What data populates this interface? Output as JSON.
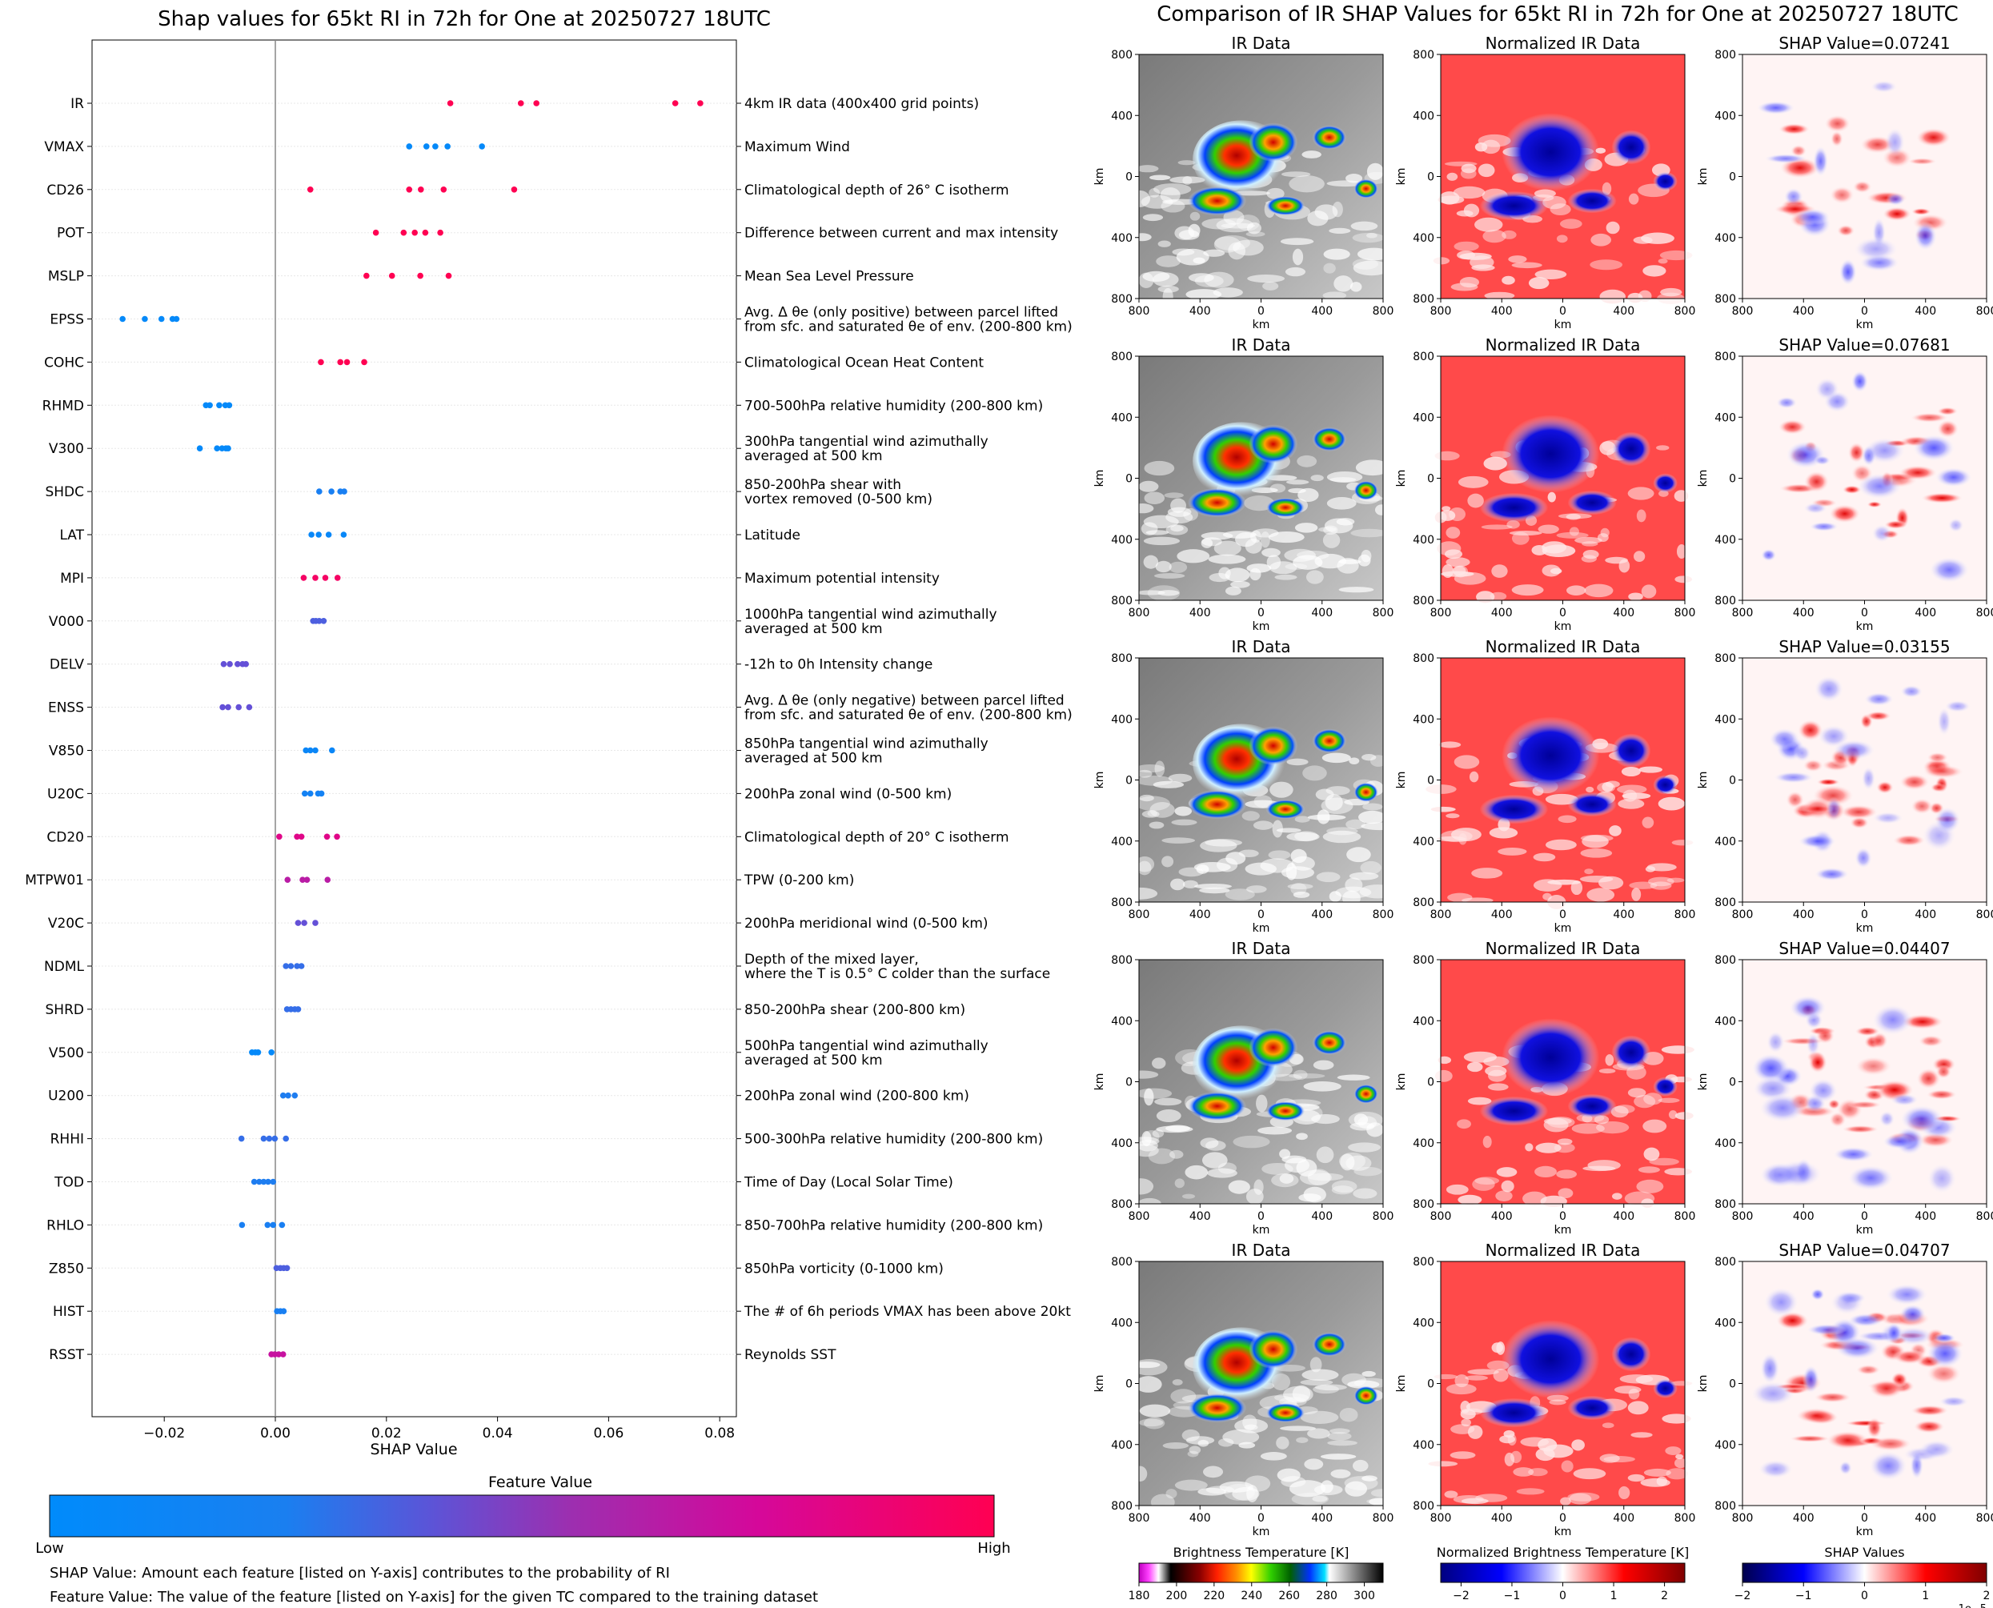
{
  "left_panel": {
    "title": "Shap values for 65kt RI in 72h for One at 20250727 18UTC",
    "xlabel": "SHAP Value",
    "colorbar_title": "Feature Value",
    "colorbar_low": "Low",
    "colorbar_high": "High",
    "colors": {
      "low": "#008bfb",
      "mid": "#9c2fb0",
      "high": "#ff0052"
    },
    "footnote_1": "SHAP Value: Amount each feature [listed on Y-axis] contributes to the probability of RI",
    "footnote_2": "Feature Value: The value of the feature [listed on Y-axis] for the given TC compared to the training dataset"
  },
  "right_panel": {
    "title": "Comparison of IR SHAP Values for 65kt RI in 72h for One at 20250727 18UTC",
    "col_titles": [
      "IR Data",
      "Normalized IR Data"
    ],
    "shap_titles": [
      "SHAP Value=0.07241",
      "SHAP Value=0.07681",
      "SHAP Value=0.03155",
      "SHAP Value=0.04407",
      "SHAP Value=0.04707"
    ],
    "axis_unit": "km",
    "ticks": [
      "800",
      "400",
      "0",
      "400",
      "800"
    ],
    "colorbars": [
      {
        "title": "Brightness Temperature [K]",
        "ticks": [
          "180",
          "200",
          "220",
          "240",
          "260",
          "280",
          "300"
        ]
      },
      {
        "title": "Normalized Brightness Temperature [K]",
        "ticks": [
          "−2",
          "−1",
          "0",
          "1",
          "2"
        ]
      },
      {
        "title": "SHAP Values",
        "ticks": [
          "−2",
          "−1",
          "0",
          "1",
          "2"
        ],
        "offset": "1e−5"
      }
    ]
  },
  "chart_data": {
    "type": "scatter",
    "title": "Shap values for 65kt RI in 72h for One at 20250727 18UTC",
    "xlabel": "SHAP Value",
    "xlim": [
      -0.033,
      0.083
    ],
    "xticks": [
      "−0.02",
      "0.00",
      "0.02",
      "0.04",
      "0.06",
      "0.08"
    ],
    "features": [
      {
        "name": "IR",
        "desc": [
          "4km IR data (400x400 grid points)"
        ],
        "value_level": 1.0,
        "shap": [
          0.0315,
          0.0442,
          0.047,
          0.072,
          0.0765
        ]
      },
      {
        "name": "VMAX",
        "desc": [
          "Maximum Wind"
        ],
        "value_level": 0.05,
        "shap": [
          0.0241,
          0.0272,
          0.0288,
          0.031,
          0.0372
        ]
      },
      {
        "name": "CD26",
        "desc": [
          "Climatological depth of 26° C isotherm"
        ],
        "value_level": 1.0,
        "shap": [
          0.0063,
          0.0241,
          0.0262,
          0.0303,
          0.043
        ]
      },
      {
        "name": "POT",
        "desc": [
          "Difference between current and max intensity"
        ],
        "value_level": 1.0,
        "shap": [
          0.0181,
          0.0231,
          0.0251,
          0.027,
          0.0297
        ]
      },
      {
        "name": "MSLP",
        "desc": [
          "Mean Sea Level Pressure"
        ],
        "value_level": 1.0,
        "shap": [
          0.0164,
          0.021,
          0.0261,
          0.0312
        ]
      },
      {
        "name": "EPSS",
        "desc": [
          "Avg. Δ θe (only positive) between parcel lifted",
          "from sfc. and saturated θe of env. (200-800 km)"
        ],
        "value_level": 0.05,
        "shap": [
          -0.0275,
          -0.0235,
          -0.0205,
          -0.0185,
          -0.0178
        ]
      },
      {
        "name": "COHC",
        "desc": [
          "Climatological Ocean Heat Content"
        ],
        "value_level": 1.0,
        "shap": [
          0.0082,
          0.0117,
          0.0129,
          0.016
        ]
      },
      {
        "name": "RHMD",
        "desc": [
          "700-500hPa relative humidity (200-800 km)"
        ],
        "value_level": 0.05,
        "shap": [
          -0.0125,
          -0.0118,
          -0.0101,
          -0.009,
          -0.0083
        ]
      },
      {
        "name": "V300",
        "desc": [
          "300hPa tangential wind azimuthally",
          "averaged at 500 km"
        ],
        "value_level": 0.05,
        "shap": [
          -0.0136,
          -0.0105,
          -0.0096,
          -0.0089,
          -0.0085
        ]
      },
      {
        "name": "SHDC",
        "desc": [
          "850-200hPa shear with",
          "vortex removed (0-500 km)"
        ],
        "value_level": 0.25,
        "shap": [
          0.0079,
          0.0101,
          0.0117,
          0.0124
        ]
      },
      {
        "name": "LAT",
        "desc": [
          "Latitude"
        ],
        "value_level": 0.08,
        "shap": [
          0.0065,
          0.0078,
          0.0096,
          0.0123
        ]
      },
      {
        "name": "MPI",
        "desc": [
          "Maximum potential intensity"
        ],
        "value_level": 0.95,
        "shap": [
          0.0051,
          0.0072,
          0.009,
          0.0112
        ]
      },
      {
        "name": "V000",
        "desc": [
          "1000hPa tangential wind azimuthally",
          "averaged at 500 km"
        ],
        "value_level": 0.4,
        "shap": [
          0.0068,
          0.0073,
          0.0079,
          0.0087
        ]
      },
      {
        "name": "DELV",
        "desc": [
          "-12h to 0h Intensity change"
        ],
        "value_level": 0.45,
        "shap": [
          -0.0093,
          -0.0082,
          -0.0068,
          -0.0059,
          -0.0053
        ]
      },
      {
        "name": "ENSS",
        "desc": [
          "Avg. Δ θe (only negative) between parcel lifted",
          "from sfc. and saturated θe of env. (200-800 km)"
        ],
        "value_level": 0.45,
        "shap": [
          -0.0095,
          -0.0085,
          -0.0066,
          -0.0047
        ]
      },
      {
        "name": "V850",
        "desc": [
          "850hPa tangential wind azimuthally",
          "averaged at 500 km"
        ],
        "value_level": 0.1,
        "shap": [
          0.0055,
          0.0063,
          0.0072,
          0.0102
        ]
      },
      {
        "name": "U20C",
        "desc": [
          "200hPa zonal wind (0-500 km)"
        ],
        "value_level": 0.2,
        "shap": [
          0.0053,
          0.0063,
          0.0077,
          0.0083
        ]
      },
      {
        "name": "CD20",
        "desc": [
          "Climatological depth of 20° C isotherm"
        ],
        "value_level": 0.85,
        "shap": [
          0.0007,
          0.0039,
          0.0047,
          0.0093,
          0.0111
        ]
      },
      {
        "name": "MTPW01",
        "desc": [
          "TPW (0-200 km)"
        ],
        "value_level": 0.7,
        "shap": [
          0.0022,
          0.0049,
          0.0057,
          0.0094
        ]
      },
      {
        "name": "V20C",
        "desc": [
          "200hPa meridional wind (0-500 km)"
        ],
        "value_level": 0.45,
        "shap": [
          0.0041,
          0.0052,
          0.0072
        ]
      },
      {
        "name": "NDML",
        "desc": [
          "Depth of the mixed layer,",
          "where the T is 0.5° C colder than the surface"
        ],
        "value_level": 0.35,
        "shap": [
          0.0019,
          0.0028,
          0.0039,
          0.0047
        ]
      },
      {
        "name": "SHRD",
        "desc": [
          "850-200hPa shear (200-800 km)"
        ],
        "value_level": 0.35,
        "shap": [
          0.0021,
          0.0028,
          0.0035,
          0.0041
        ]
      },
      {
        "name": "V500",
        "desc": [
          "500hPa tangential wind azimuthally",
          "averaged at 500 km"
        ],
        "value_level": 0.05,
        "shap": [
          -0.0042,
          -0.0036,
          -0.0031,
          -0.0007
        ]
      },
      {
        "name": "U200",
        "desc": [
          "200hPa zonal wind (200-800 km)"
        ],
        "value_level": 0.3,
        "shap": [
          0.0014,
          0.0023,
          0.0035
        ]
      },
      {
        "name": "RHHI",
        "desc": [
          "500-300hPa relative humidity (200-800 km)"
        ],
        "value_level": 0.35,
        "shap": [
          -0.0061,
          -0.0021,
          -0.0011,
          -0.0001,
          0.0019
        ]
      },
      {
        "name": "TOD",
        "desc": [
          "Time of Day (Local Solar Time)"
        ],
        "value_level": 0.3,
        "shap": [
          -0.0038,
          -0.0029,
          -0.0021,
          -0.0013,
          -0.0004
        ]
      },
      {
        "name": "RHLO",
        "desc": [
          "850-700hPa relative humidity (200-800 km)"
        ],
        "value_level": 0.25,
        "shap": [
          -0.006,
          -0.0014,
          -0.0004,
          0.0012
        ]
      },
      {
        "name": "Z850",
        "desc": [
          "850hPa vorticity (0-1000 km)"
        ],
        "value_level": 0.4,
        "shap": [
          0.0002,
          0.0009,
          0.0015,
          0.0021
        ]
      },
      {
        "name": "HIST",
        "desc": [
          "The # of 6h periods VMAX has been above 20kt"
        ],
        "value_level": 0.25,
        "shap": [
          0.0003,
          0.0009,
          0.0015
        ]
      },
      {
        "name": "RSST",
        "desc": [
          "Reynolds SST"
        ],
        "value_level": 0.75,
        "shap": [
          -0.0007,
          -0.0001,
          0.0006,
          0.0014
        ]
      }
    ]
  }
}
